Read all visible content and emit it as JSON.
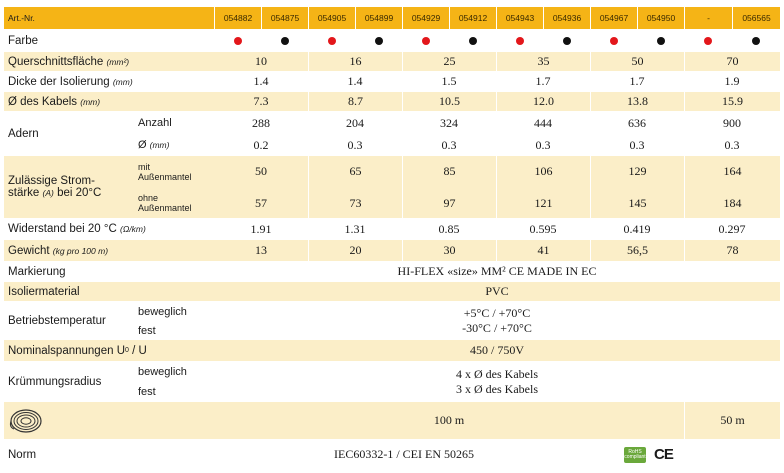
{
  "header": {
    "label": "Art.-Nr.",
    "codes": [
      "054882",
      "054875",
      "054905",
      "054899",
      "054929",
      "054912",
      "054943",
      "054936",
      "054967",
      "054950",
      "-",
      "056565"
    ]
  },
  "farbe": {
    "label": "Farbe",
    "dots": [
      "red",
      "black",
      "red",
      "black",
      "red",
      "black",
      "red",
      "black",
      "red",
      "black",
      "red",
      "black"
    ]
  },
  "querschnitt": {
    "label": "Querschnittsfläche",
    "unit": "(mm²)",
    "values": [
      "10",
      "16",
      "25",
      "35",
      "50",
      "70"
    ]
  },
  "dicke": {
    "label": "Dicke der Isolierung",
    "unit": "(mm)",
    "values": [
      "1.4",
      "1.4",
      "1.5",
      "1.7",
      "1.7",
      "1.9"
    ]
  },
  "durchmesser": {
    "label": "Ø des Kabels",
    "unit": "(mm)",
    "values": [
      "7.3",
      "8.7",
      "10.5",
      "12.0",
      "13.8",
      "15.9"
    ]
  },
  "adern": {
    "label": "Adern",
    "anzahl_label": "Anzahl",
    "anzahl": [
      "288",
      "204",
      "324",
      "444",
      "636",
      "900"
    ],
    "d_label": "Ø",
    "d_unit": "(mm)",
    "d": [
      "0.2",
      "0.3",
      "0.3",
      "0.3",
      "0.3",
      "0.3"
    ]
  },
  "strom": {
    "label_line1": "Zulässige Strom-",
    "label_line2": "stärke",
    "label_unit": "(A)",
    "label_rest": "bei 20°C",
    "mit_line1": "mit",
    "mit_line2": "Außenmantel",
    "mit": [
      "50",
      "65",
      "85",
      "106",
      "129",
      "164"
    ],
    "ohne_line1": "ohne",
    "ohne_line2": "Außenmantel",
    "ohne": [
      "57",
      "73",
      "97",
      "121",
      "145",
      "184"
    ]
  },
  "widerstand": {
    "label": "Widerstand bei 20 °C",
    "unit": "(Ω/km)",
    "values": [
      "1.91",
      "1.31",
      "0.85",
      "0.595",
      "0.419",
      "0.297"
    ]
  },
  "gewicht": {
    "label": "Gewicht",
    "unit": "(kg pro 100 m)",
    "values": [
      "13",
      "20",
      "30",
      "41",
      "56,5",
      "78"
    ]
  },
  "markierung": {
    "label": "Markierung",
    "value": "HI-FLEX «size» MM² CE MADE IN EC"
  },
  "isoliermaterial": {
    "label": "Isoliermaterial",
    "value": "PVC"
  },
  "betriebstemperatur": {
    "label": "Betriebstemperatur",
    "sub1": "beweglich",
    "sub2": "fest",
    "value1": "+5°C / +70°C",
    "value2": "-30°C / +70°C"
  },
  "nennspannung": {
    "label": "Nominalspannungen U",
    "label_sub": "0",
    "label_rest": " / U",
    "value": "450 / 750V"
  },
  "kruemmung": {
    "label": "Krümmungsradius",
    "sub1": "beweglich",
    "sub2": "fest",
    "value1": "4 x Ø des Kabels",
    "value2": "3 x Ø des Kabels"
  },
  "laenge": {
    "icon": "cable-coil-icon",
    "value_main": "100 m",
    "value_last": "50 m"
  },
  "norm": {
    "label": "Norm",
    "value": "IEC60332-1 / CEI EN 50265",
    "rohs_line1": "RoHS",
    "rohs_line2": "compliant",
    "ce": "CE"
  },
  "colors": {
    "header": "#f5b416",
    "band": "#fbeec8",
    "red_dot": "#e3171b",
    "black_dot": "#111111"
  }
}
